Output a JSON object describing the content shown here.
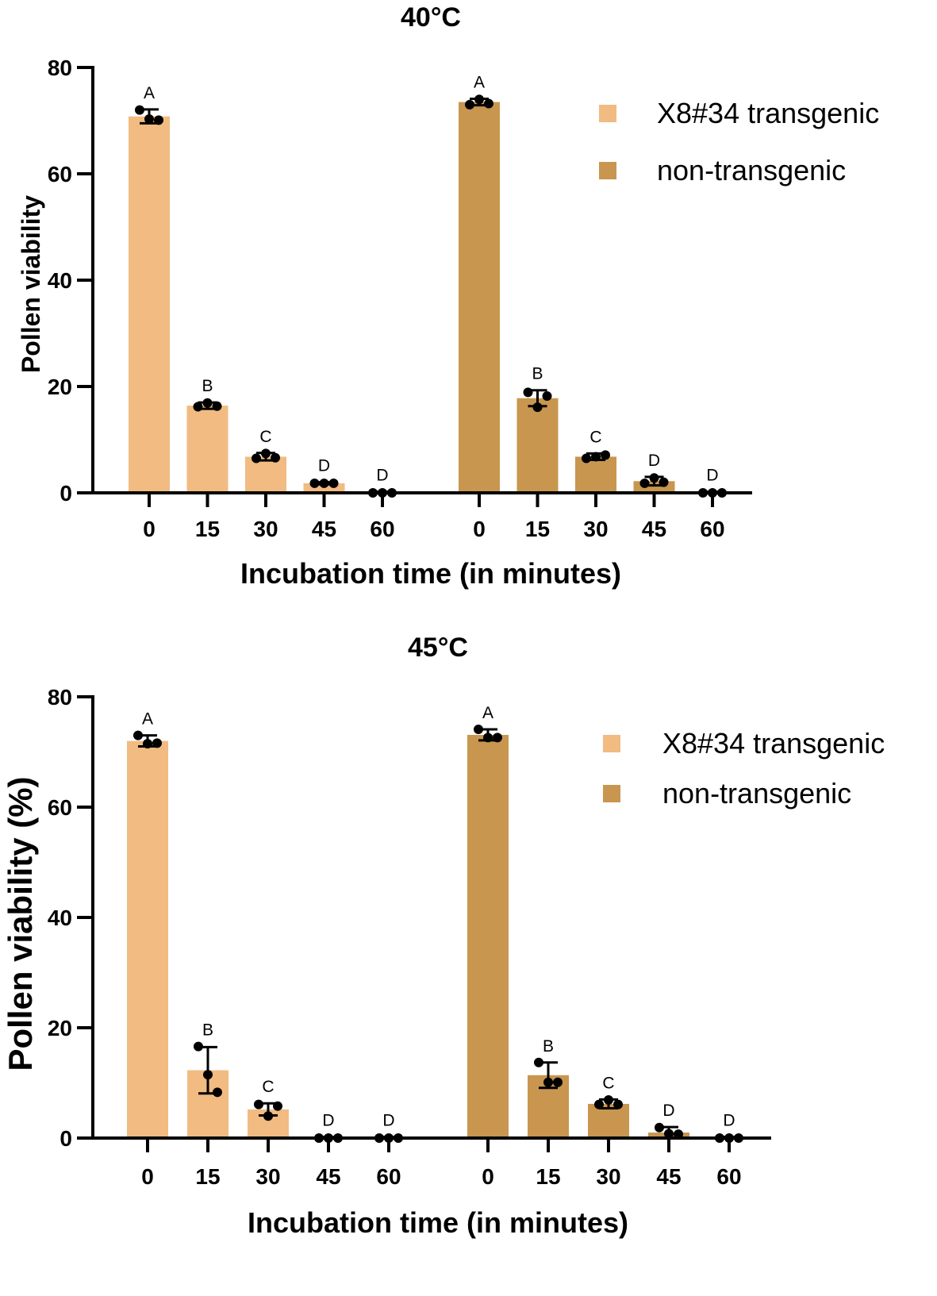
{
  "chart_data": [
    {
      "type": "bar",
      "title": "40°C",
      "xlabel": "Incubation time (in minutes)",
      "ylabel": "Pollen viability",
      "ylim": [
        0,
        80
      ],
      "yticks": [
        0,
        20,
        40,
        60,
        80
      ],
      "grid": false,
      "legend_position": "top-right",
      "groups": [
        {
          "name": "X8#34 transgenic",
          "color": "#f1bb82",
          "categories": [
            "0",
            "15",
            "30",
            "45",
            "60"
          ],
          "values": [
            70.8,
            16.4,
            6.8,
            1.8,
            0.1
          ],
          "error": [
            1.3,
            0.6,
            0.7,
            0.2,
            0.1
          ],
          "points": [
            [
              72,
              70.3,
              70.1
            ],
            [
              16.2,
              16.9,
              16.3
            ],
            [
              6.5,
              7.4,
              6.6
            ],
            [
              1.8,
              1.8,
              1.8
            ],
            [
              0,
              0,
              0
            ]
          ],
          "letters": [
            "A",
            "B",
            "C",
            "D",
            "D"
          ]
        },
        {
          "name": "non-transgenic",
          "color": "#c8964f",
          "categories": [
            "0",
            "15",
            "30",
            "45",
            "60"
          ],
          "values": [
            73.5,
            17.8,
            6.8,
            2.2,
            0.1
          ],
          "error": [
            0.6,
            1.5,
            0.6,
            0.8,
            0.1
          ],
          "points": [
            [
              73,
              74,
              73.2
            ],
            [
              18.9,
              16.1,
              18.2
            ],
            [
              6.5,
              6.8,
              7.1
            ],
            [
              1.8,
              2.8,
              2
            ],
            [
              0,
              0,
              0
            ]
          ],
          "letters": [
            "A",
            "B",
            "C",
            "D",
            "D"
          ]
        }
      ]
    },
    {
      "type": "bar",
      "title": "45°C",
      "xlabel": "Incubation time (in minutes)",
      "ylabel": "Pollen viability (%)",
      "ylim": [
        0,
        80
      ],
      "yticks": [
        0,
        20,
        40,
        60,
        80
      ],
      "grid": false,
      "legend_position": "top-right",
      "groups": [
        {
          "name": "X8#34 transgenic",
          "color": "#f1bb82",
          "categories": [
            "0",
            "15",
            "30",
            "45",
            "60"
          ],
          "values": [
            72,
            12.3,
            5.2,
            0.1,
            0.1
          ],
          "error": [
            1.0,
            4.2,
            1.1,
            0.1,
            0.1
          ],
          "points": [
            [
              73,
              71.5,
              71.6
            ],
            [
              16.6,
              11.5,
              8.3
            ],
            [
              6.1,
              4,
              5.8
            ],
            [
              0,
              0,
              0
            ],
            [
              0,
              0,
              0
            ]
          ],
          "letters": [
            "A",
            "B",
            "C",
            "D",
            "D"
          ]
        },
        {
          "name": "non-transgenic",
          "color": "#c8964f",
          "categories": [
            "0",
            "15",
            "30",
            "45",
            "60"
          ],
          "values": [
            73.1,
            11.4,
            6.2,
            1.0,
            0.1
          ],
          "error": [
            1.0,
            2.3,
            0.8,
            1.0,
            0.1
          ],
          "points": [
            [
              74.1,
              72.6,
              72.6
            ],
            [
              13.7,
              10.1,
              10.1
            ],
            [
              6.1,
              6.9,
              6.1
            ],
            [
              1.9,
              0.8,
              0.7
            ],
            [
              0,
              0,
              0
            ]
          ],
          "letters": [
            "A",
            "B",
            "C",
            "D",
            "D"
          ]
        }
      ]
    }
  ]
}
